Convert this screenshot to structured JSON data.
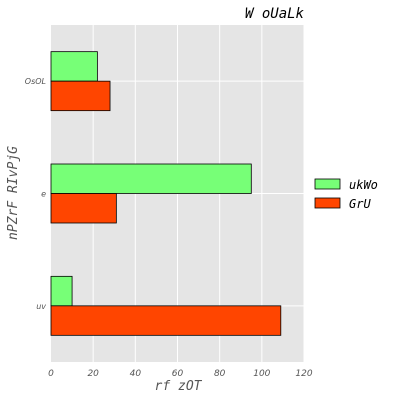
{
  "chart_data": {
    "type": "bar",
    "orientation": "horizontal",
    "title": "W oUaLk",
    "xlabel": "rf zOT",
    "ylabel": "nPZrF RIvPjG",
    "categories": [
      "OsOL",
      "e",
      "uv"
    ],
    "series": [
      {
        "name": "ukWo",
        "color": "#77ff77",
        "values": [
          22,
          95,
          10
        ]
      },
      {
        "name": "GrU",
        "color": "#ff4500",
        "values": [
          28,
          31,
          109
        ]
      }
    ],
    "xlim": [
      0,
      120
    ],
    "xticks": [
      0,
      20,
      40,
      60,
      80,
      100,
      120
    ],
    "grid": true,
    "legend_position": "right"
  }
}
